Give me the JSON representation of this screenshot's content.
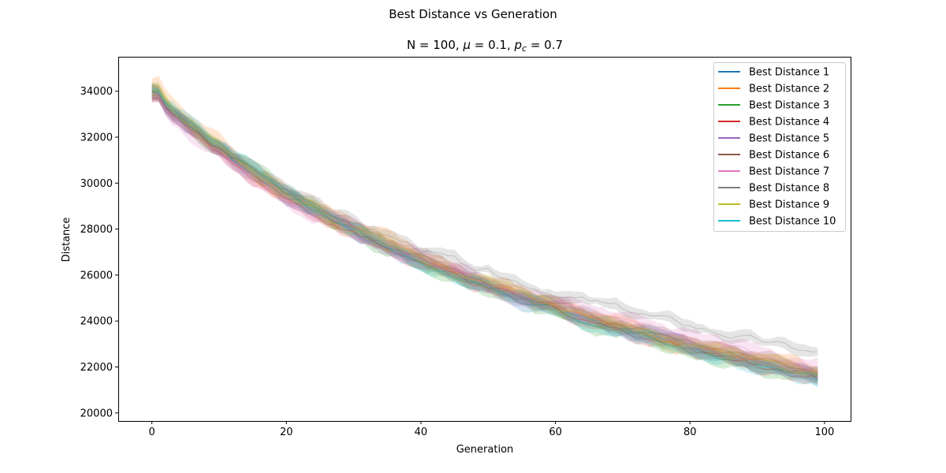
{
  "chart_data": {
    "type": "line",
    "suptitle": "Best Distance vs Generation",
    "title": {
      "n_part": "N = 100, ",
      "mu_symbol": "μ",
      "mu_part": " = 0.1, ",
      "p_symbol": "p",
      "p_sub": "c",
      "p_part": " = 0.7"
    },
    "xlabel": "Generation",
    "ylabel": "Distance",
    "xlim": [
      -5,
      104
    ],
    "ylim": [
      19650,
      35500
    ],
    "xticks": [
      0,
      20,
      40,
      60,
      80,
      100
    ],
    "yticks": [
      20000,
      22000,
      24000,
      26000,
      28000,
      30000,
      32000,
      34000
    ],
    "legend_position": "top-right",
    "grid": false,
    "generations": 100,
    "series": [
      {
        "name": "Best Distance 1",
        "color": "#1f77b4",
        "start": 34000,
        "end": 21250,
        "band": 250
      },
      {
        "name": "Best Distance 2",
        "color": "#ff7f0e",
        "start": 34200,
        "end": 21350,
        "band": 300
      },
      {
        "name": "Best Distance 3",
        "color": "#2ca02c",
        "start": 34050,
        "end": 21200,
        "band": 300
      },
      {
        "name": "Best Distance 4",
        "color": "#d62728",
        "start": 33800,
        "end": 21250,
        "band": 220
      },
      {
        "name": "Best Distance 5",
        "color": "#9467bd",
        "start": 33900,
        "end": 21300,
        "band": 250
      },
      {
        "name": "Best Distance 6",
        "color": "#8c564b",
        "start": 33950,
        "end": 21550,
        "band": 250
      },
      {
        "name": "Best Distance 7",
        "color": "#e377c2",
        "start": 33700,
        "end": 21700,
        "band": 300
      },
      {
        "name": "Best Distance 8",
        "color": "#7f7f7f",
        "start": 33800,
        "end": 22300,
        "band": 200
      },
      {
        "name": "Best Distance 9",
        "color": "#bcbd22",
        "start": 34100,
        "end": 21350,
        "band": 220
      },
      {
        "name": "Best Distance 10",
        "color": "#17becf",
        "start": 34200,
        "end": 21100,
        "band": 220
      }
    ]
  }
}
